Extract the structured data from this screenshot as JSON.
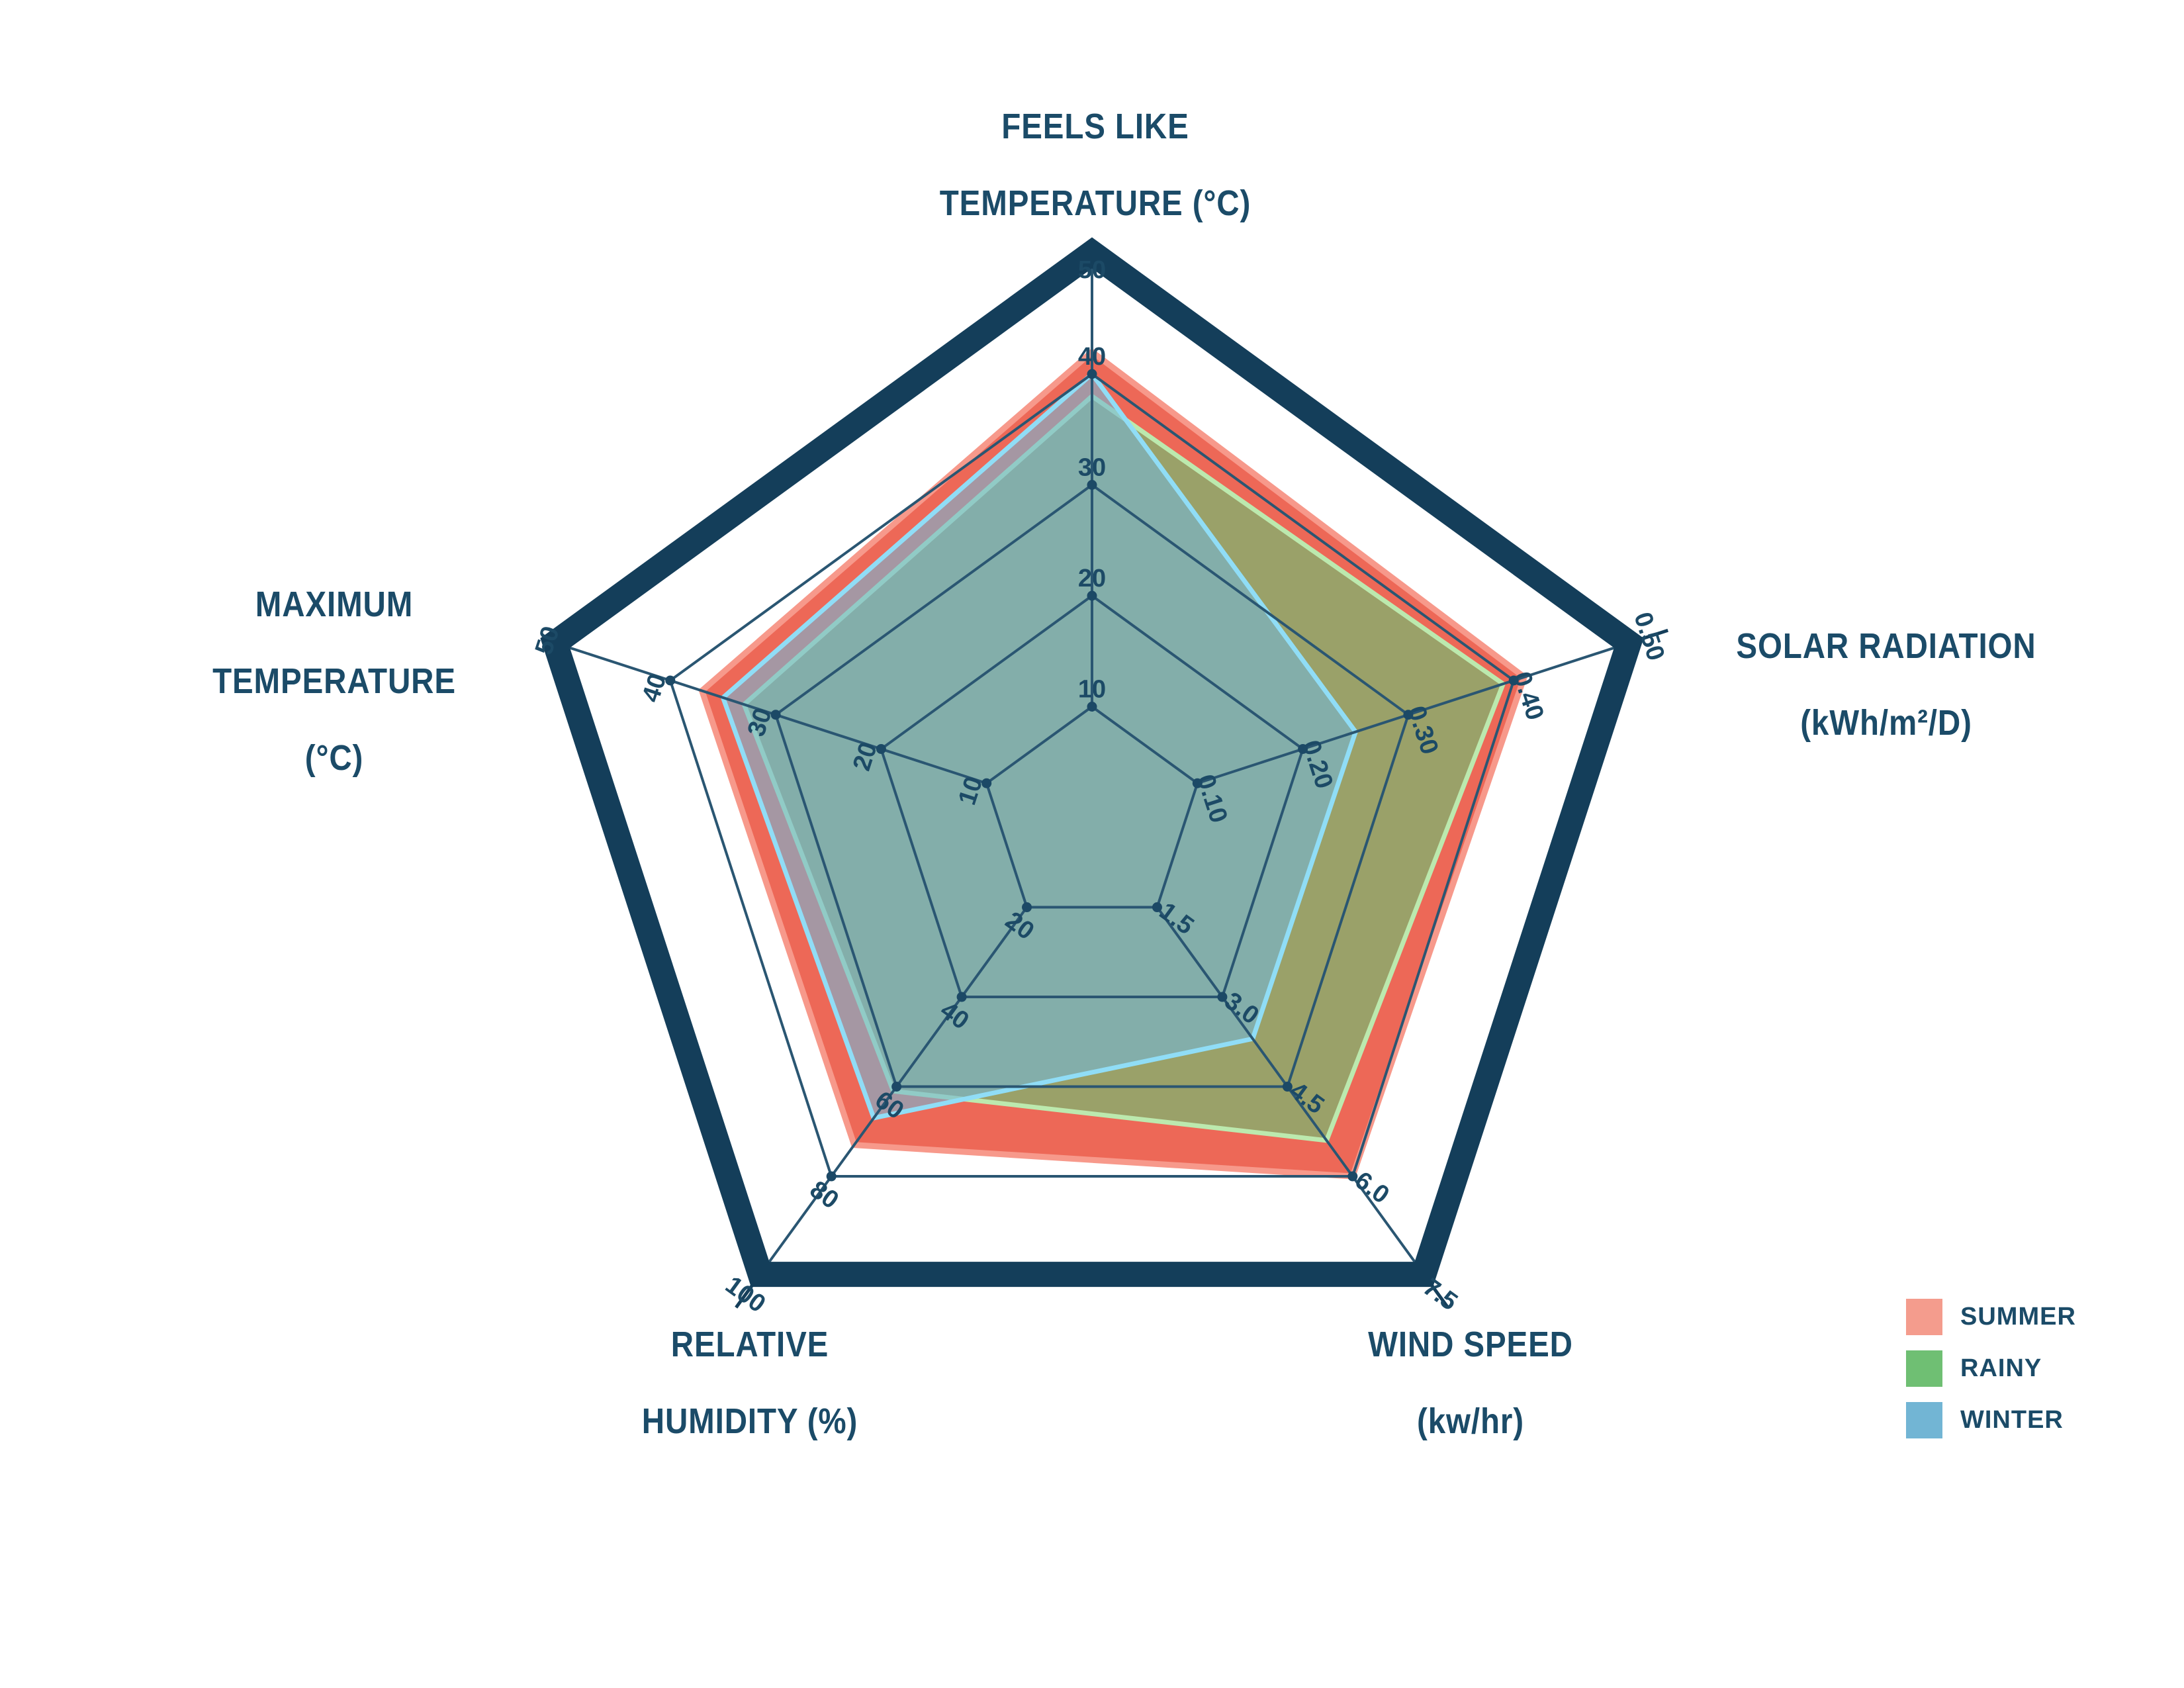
{
  "chart_data": {
    "type": "radar",
    "shape": "pentagon",
    "grid": true,
    "legend_position": "bottom-right",
    "axes": [
      {
        "id": "feels_like_temperature",
        "title_lines": [
          "FEELS LIKE",
          "TEMPERATURE (°C)"
        ],
        "min": 0,
        "max": 50,
        "ticks": [
          "10",
          "20",
          "30",
          "40",
          "50"
        ]
      },
      {
        "id": "solar_radiation",
        "title_lines": [
          "SOLAR RADIATION",
          "(kWh/m²/D)"
        ],
        "min": 0,
        "max": 0.5,
        "ticks": [
          "0.10",
          "0.20",
          "0.30",
          "0.40",
          "0.50"
        ]
      },
      {
        "id": "wind_speed",
        "title_lines": [
          "WIND SPEED",
          "(kw/hr)"
        ],
        "min": 0,
        "max": 7.5,
        "ticks": [
          "1.5",
          "3.0",
          "4.5",
          "6.0",
          "7.5"
        ]
      },
      {
        "id": "relative_humidity",
        "title_lines": [
          "RELATIVE",
          "HUMIDITY (%)"
        ],
        "min": 0,
        "max": 100,
        "ticks": [
          "20",
          "40",
          "60",
          "80",
          "100"
        ]
      },
      {
        "id": "maximum_temperature",
        "title_lines": [
          "MAXIMUM",
          "TEMPERATURE",
          "(°C)"
        ],
        "min": 0,
        "max": 50,
        "ticks": [
          "10",
          "20",
          "30",
          "40",
          "50"
        ]
      }
    ],
    "series": [
      {
        "name": "SUMMER",
        "values": [
          42,
          0.41,
          6.0,
          73,
          37
        ],
        "fill": "#EB5B49",
        "fill_opacity": 0.92,
        "stroke": "#F7998B",
        "legend_color": "#F49C8D"
      },
      {
        "name": "RAINY",
        "values": [
          38,
          0.39,
          5.4,
          61,
          33
        ],
        "fill": "#6FBF73",
        "fill_opacity": 0.66,
        "stroke": "#BCE9AE",
        "legend_color": "#6FBF73"
      },
      {
        "name": "WINTER",
        "values": [
          40,
          0.25,
          3.7,
          67,
          35
        ],
        "fill": "#74B7D6",
        "fill_opacity": 0.6,
        "stroke": "#90DDF6",
        "legend_color": "#72B5D4"
      }
    ],
    "colors": {
      "outer_border": "#143E5A",
      "grid_line": "#2A5672",
      "tick_dot": "#1C4966",
      "tick_text": "#1C4A66",
      "title_text": "#1B4B68"
    }
  }
}
